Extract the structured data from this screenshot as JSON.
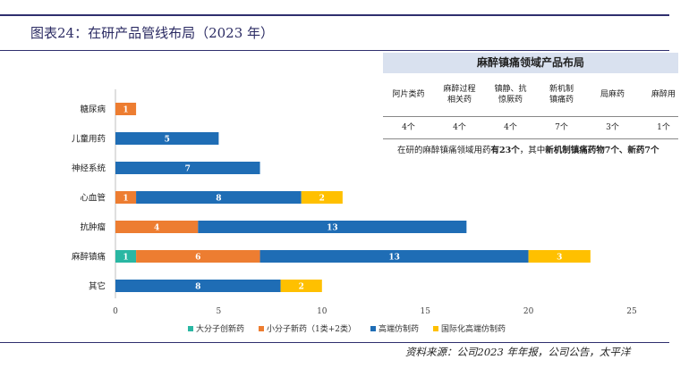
{
  "figure_title": "图表24：在研产品管线布局（2023 年）",
  "source_text": "资料来源：公司2023 年年报，公司公告，太平洋",
  "colors": {
    "rule": "#2f2f6e",
    "series": [
      "#2ab7a3",
      "#ed7d31",
      "#1f6db5",
      "#ffc000"
    ]
  },
  "table": {
    "title": "麻醉镇痛领域产品布局",
    "headers": [
      "阿片类药",
      "麻醉过程\n相关药",
      "镇静、抗\n惊厥药",
      "新机制\n镇痛药",
      "局麻药",
      "麻醉用"
    ],
    "values": [
      "4个",
      "4个",
      "4个",
      "7个",
      "3个",
      "1个"
    ]
  },
  "note": {
    "part1": "在研的麻醉镇痛领域用药",
    "part2": "有23个",
    "part3": "，其中",
    "part4": "新机制镇痛药物7个、新药7个"
  },
  "chart_data": {
    "type": "bar",
    "orientation": "horizontal",
    "stacked": true,
    "categories": [
      "糖尿病",
      "儿童用药",
      "神经系统",
      "心血管",
      "抗肿瘤",
      "麻醉镇痛",
      "其它"
    ],
    "series": [
      {
        "name": "大分子创新药",
        "values": [
          0,
          0,
          0,
          0,
          0,
          1,
          0
        ]
      },
      {
        "name": "小分子新药（1类+2类）",
        "values": [
          1,
          0,
          0,
          1,
          4,
          6,
          0
        ]
      },
      {
        "name": "高端仿制药",
        "values": [
          0,
          5,
          7,
          8,
          13,
          13,
          8
        ]
      },
      {
        "name": "国际化高端仿制药",
        "values": [
          0,
          0,
          0,
          2,
          0,
          3,
          2
        ]
      }
    ],
    "xlim": [
      0,
      25
    ],
    "xticks": [
      0,
      5,
      10,
      15,
      20,
      25
    ],
    "data_labels": true,
    "grid": false,
    "legend": "bottom"
  }
}
